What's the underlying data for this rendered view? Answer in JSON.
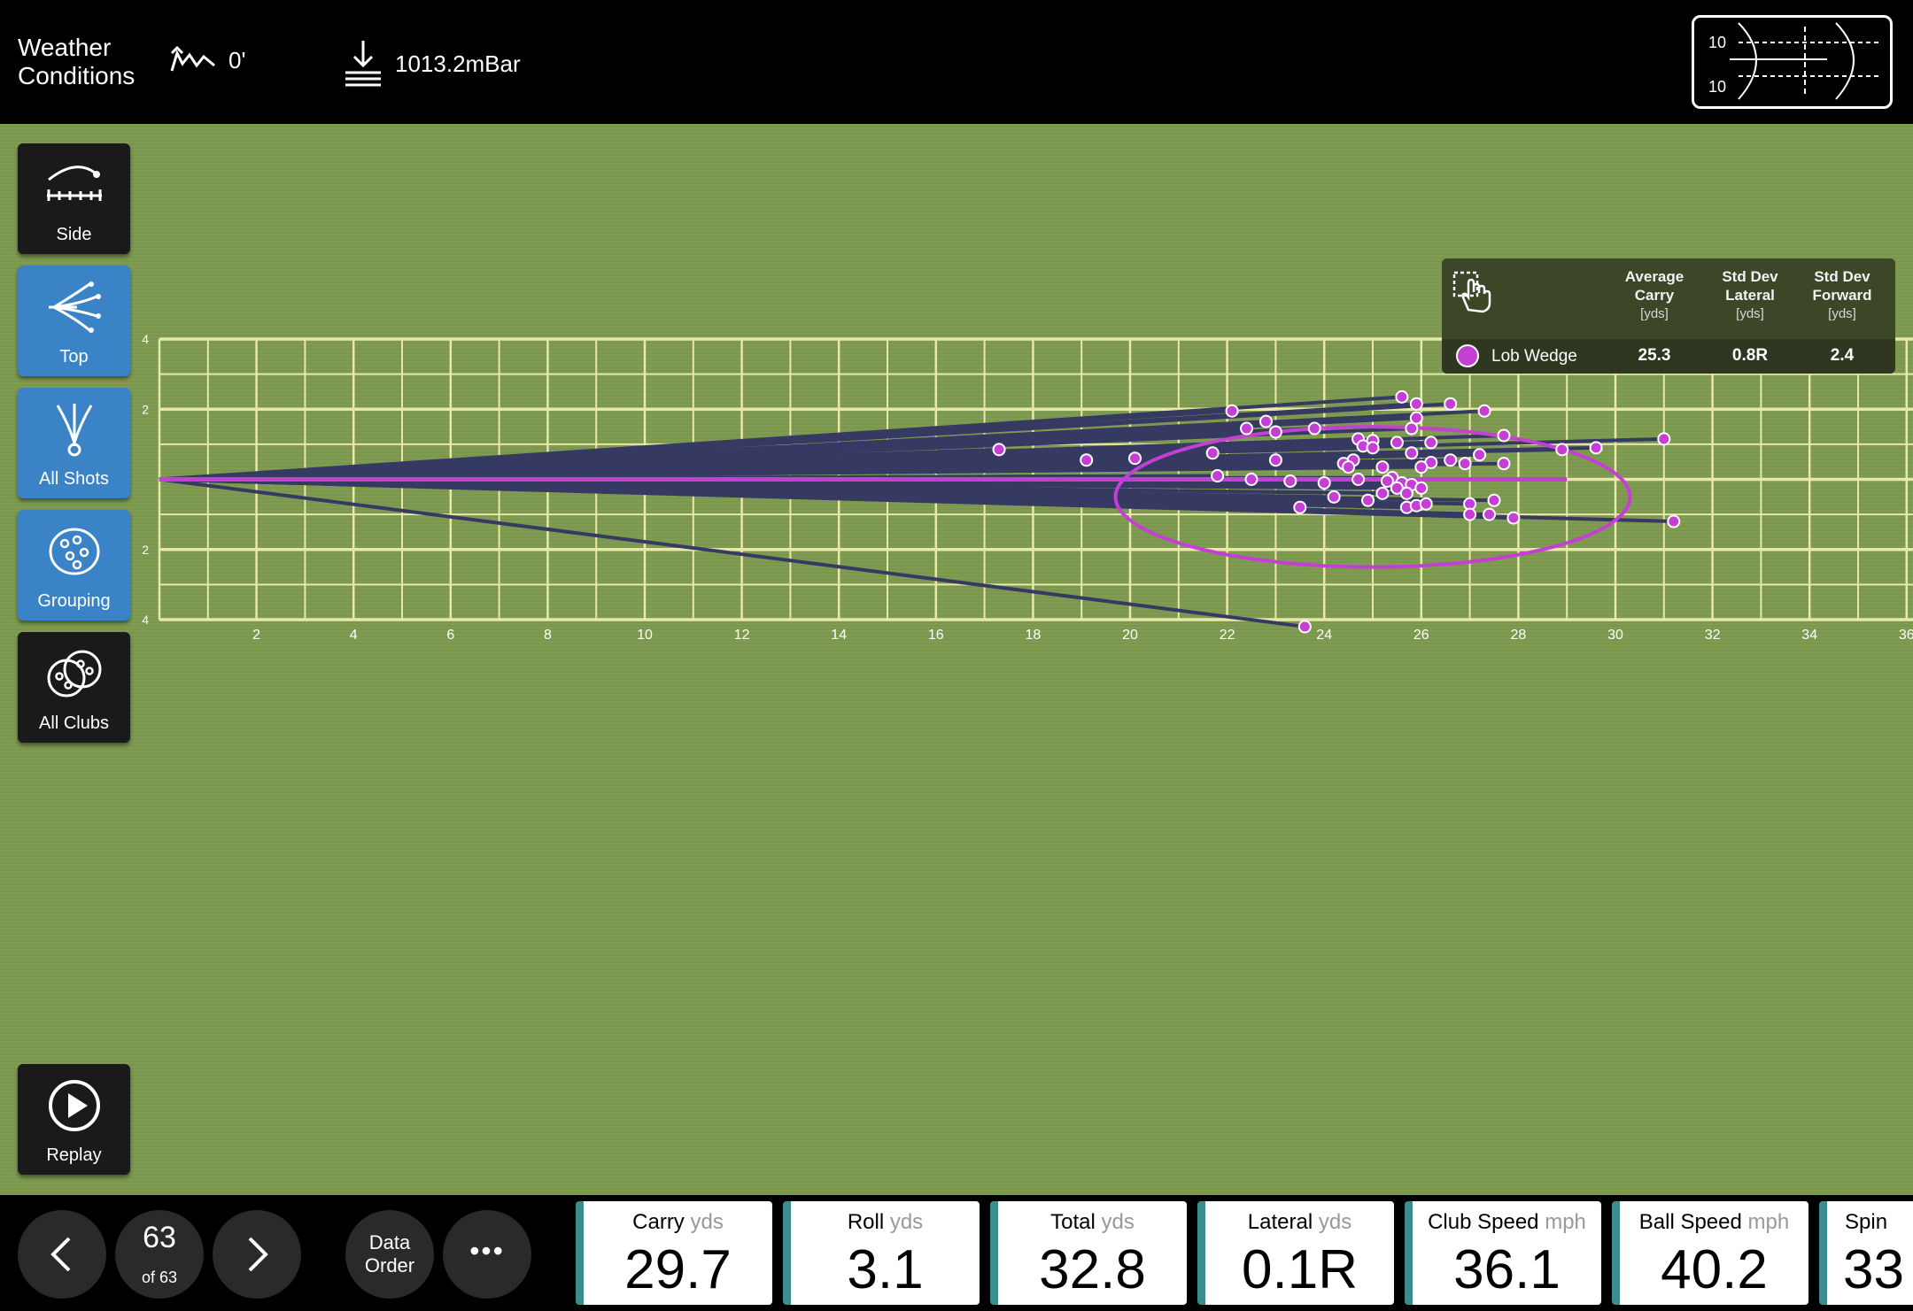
{
  "header": {
    "title_line1": "Weather",
    "title_line2": "Conditions",
    "elevation": "0'",
    "pressure": "1013.2mBar",
    "minimap": {
      "label_top": "10",
      "label_bottom": "10"
    }
  },
  "sidebar": {
    "items": [
      {
        "label": "Side",
        "icon": "side-view-icon",
        "selected": false
      },
      {
        "label": "Top",
        "icon": "top-view-icon",
        "selected": true
      },
      {
        "label": "All Shots",
        "icon": "all-shots-icon",
        "selected": true
      },
      {
        "label": "Grouping",
        "icon": "grouping-icon",
        "selected": true
      },
      {
        "label": "All Clubs",
        "icon": "all-clubs-icon",
        "selected": false
      }
    ],
    "replay_label": "Replay"
  },
  "stats_panel": {
    "columns": [
      {
        "line1": "Average",
        "line2": "Carry",
        "unit": "[yds]"
      },
      {
        "line1": "Std Dev",
        "line2": "Lateral",
        "unit": "[yds]"
      },
      {
        "line1": "Std Dev",
        "line2": "Forward",
        "unit": "[yds]"
      }
    ],
    "row": {
      "club": "Lob Wedge",
      "color": "#c53fd5",
      "values": [
        "25.3",
        "0.8R",
        "2.4"
      ]
    }
  },
  "chart_data": {
    "type": "scatter",
    "x_ticks": [
      "2",
      "4",
      "6",
      "8",
      "10",
      "12",
      "14",
      "16",
      "18",
      "20",
      "22",
      "24",
      "26",
      "28",
      "30",
      "32",
      "34",
      "36"
    ],
    "y_ticks": [
      "4",
      "2",
      "2",
      "4"
    ],
    "xlim": [
      0,
      36
    ],
    "ylim": [
      -4,
      4
    ],
    "points": [
      [
        25.6,
        2.35
      ],
      [
        25.9,
        2.15
      ],
      [
        26.6,
        2.15
      ],
      [
        22.1,
        1.95
      ],
      [
        27.3,
        1.95
      ],
      [
        25.9,
        1.75
      ],
      [
        22.8,
        1.65
      ],
      [
        25.8,
        1.45
      ],
      [
        22.4,
        1.45
      ],
      [
        23.0,
        1.35
      ],
      [
        23.8,
        1.45
      ],
      [
        27.7,
        1.25
      ],
      [
        31.0,
        1.15
      ],
      [
        24.7,
        1.15
      ],
      [
        25.0,
        1.1
      ],
      [
        25.5,
        1.05
      ],
      [
        26.2,
        1.05
      ],
      [
        24.8,
        0.95
      ],
      [
        25.0,
        0.9
      ],
      [
        29.6,
        0.9
      ],
      [
        17.3,
        0.85
      ],
      [
        28.9,
        0.85
      ],
      [
        21.7,
        0.75
      ],
      [
        25.8,
        0.75
      ],
      [
        27.2,
        0.7
      ],
      [
        19.1,
        0.55
      ],
      [
        20.1,
        0.6
      ],
      [
        23.0,
        0.55
      ],
      [
        24.6,
        0.55
      ],
      [
        24.4,
        0.45
      ],
      [
        26.2,
        0.48
      ],
      [
        26.6,
        0.55
      ],
      [
        27.7,
        0.45
      ],
      [
        25.2,
        0.35
      ],
      [
        24.5,
        0.35
      ],
      [
        26.0,
        0.35
      ],
      [
        26.9,
        0.45
      ],
      [
        21.8,
        0.1
      ],
      [
        22.5,
        0.0
      ],
      [
        24.7,
        0.0
      ],
      [
        25.4,
        0.05
      ],
      [
        23.3,
        -0.05
      ],
      [
        24.2,
        -0.5
      ],
      [
        25.6,
        -0.1
      ],
      [
        24.9,
        -0.6
      ],
      [
        25.3,
        -0.05
      ],
      [
        27.0,
        -0.7
      ],
      [
        27.5,
        -0.6
      ],
      [
        25.8,
        -0.15
      ],
      [
        25.5,
        -0.25
      ],
      [
        26.0,
        -0.25
      ],
      [
        24.0,
        -0.1
      ],
      [
        25.7,
        -0.4
      ],
      [
        31.2,
        -1.2
      ],
      [
        23.5,
        -0.8
      ],
      [
        25.7,
        -0.8
      ],
      [
        25.9,
        -0.75
      ],
      [
        27.0,
        -1.0
      ],
      [
        27.4,
        -1.0
      ],
      [
        27.9,
        -1.1
      ],
      [
        23.6,
        -4.2
      ],
      [
        26.1,
        -0.7
      ],
      [
        25.2,
        -0.4
      ]
    ],
    "mean_line": {
      "x": [
        0,
        29.0
      ],
      "y": [
        0.0,
        0.0
      ]
    },
    "ellipse": {
      "cx": 25.0,
      "cy": -0.5,
      "rx": 5.3,
      "ry": 2.0
    }
  },
  "bottom": {
    "shot_index": "63",
    "shot_total": "of 63",
    "data_order_line1": "Data",
    "data_order_line2": "Order",
    "more_label": "•••",
    "metrics": [
      {
        "title": "Carry",
        "unit": "yds",
        "value": "29.7"
      },
      {
        "title": "Roll",
        "unit": "yds",
        "value": "3.1"
      },
      {
        "title": "Total",
        "unit": "yds",
        "value": "32.8"
      },
      {
        "title": "Lateral",
        "unit": "yds",
        "value": "0.1R"
      },
      {
        "title": "Club Speed",
        "unit": "mph",
        "value": "36.1"
      },
      {
        "title": "Ball Speed",
        "unit": "mph",
        "value": "40.2"
      },
      {
        "title": "Spin",
        "unit": "",
        "value": "33"
      }
    ]
  }
}
